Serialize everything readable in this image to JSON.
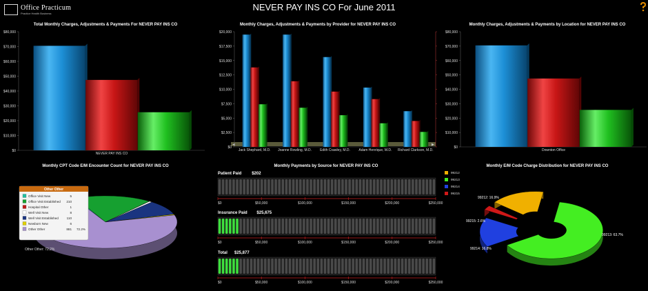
{
  "app": {
    "logo_text": "Office Practicum",
    "logo_tagline": "Practice Health Business"
  },
  "page": {
    "title": "NEVER PAY INS CO For June 2011"
  },
  "colors": {
    "charges": "#1e90d8",
    "adjustments": "#d81818",
    "payments": "#22c222",
    "bg": "#000000"
  },
  "chart_data": [
    {
      "id": "total",
      "type": "bar",
      "title": "Total Monthly Charges, Adjustments & Payments For NEVER PAY INS CO",
      "categories": [
        "NEVER PAY INS CO"
      ],
      "series": [
        {
          "values": [
            70500
          ]
        },
        {
          "values": [
            47500
          ]
        },
        {
          "values": [
            25700
          ]
        }
      ],
      "ylim": [
        0,
        80000
      ],
      "yticks": [
        0,
        10000,
        20000,
        30000,
        40000,
        50000,
        60000,
        70000,
        80000
      ],
      "ytick_labels": [
        "$0",
        "$10,000",
        "$20,000",
        "$30,000",
        "$40,000",
        "$50,000",
        "$60,000",
        "$70,000",
        "$80,000"
      ]
    },
    {
      "id": "provider",
      "type": "bar",
      "title": "Monthly Charges, Adjustments & Payments by Provider for NEVER PAY INS CO",
      "categories": [
        "Jack Shephard, M.D.",
        "Joanne Rowling, M.D.",
        "Edith Crawley, M.D.",
        "Adam Henrique, M.D.",
        "Richard Clarkson, M.D."
      ],
      "series": [
        {
          "values": [
            19500,
            19500,
            15600,
            10300,
            6200
          ]
        },
        {
          "values": [
            13800,
            11400,
            9600,
            8300,
            4500
          ]
        },
        {
          "values": [
            7400,
            6800,
            5500,
            4100,
            2600
          ]
        }
      ],
      "ylim": [
        0,
        20000
      ],
      "yticks": [
        0,
        2500,
        5000,
        7500,
        10000,
        12500,
        15000,
        17500,
        20000
      ],
      "ytick_labels": [
        "$0",
        "$2,500",
        "$5,000",
        "$7,500",
        "$10,000",
        "$12,500",
        "$15,000",
        "$17,500",
        "$20,000"
      ]
    },
    {
      "id": "location",
      "type": "bar",
      "title": "Monthly Charges, Adjustments & Payments by Location for NEVER PAY INS CO",
      "categories": [
        "Downton Office"
      ],
      "series": [
        {
          "values": [
            70500
          ]
        },
        {
          "values": [
            47500
          ]
        },
        {
          "values": [
            25700
          ]
        }
      ],
      "ylim": [
        0,
        80000
      ],
      "yticks": [
        0,
        10000,
        20000,
        30000,
        40000,
        50000,
        60000,
        70000,
        80000
      ],
      "ytick_labels": [
        "$0",
        "$10,000",
        "$20,000",
        "$30,000",
        "$40,000",
        "$50,000",
        "$60,000",
        "$70,000",
        "$80,000"
      ]
    },
    {
      "id": "cpt_pie",
      "type": "pie",
      "title": "Monthly CPT Code E/M Encounter Count for NEVER PAY INS CO",
      "slices": [
        {
          "name": "Office Visit New",
          "value": 5,
          "color": "#20c0a0"
        },
        {
          "name": "Office Visit Established",
          "value": 210,
          "color": "#16a030"
        },
        {
          "name": "Hospital Other",
          "value": 1,
          "color": "#c01818"
        },
        {
          "name": "Well Visit New",
          "value": 8,
          "color": "#ffffff"
        },
        {
          "name": "Well Visit Established",
          "value": 110,
          "color": "#1a3480"
        },
        {
          "name": "Newborn New",
          "value": 6,
          "color": "#e0d000"
        },
        {
          "name": "Other Other",
          "value": 881,
          "color": "#a890d0",
          "pct_label": "72.2%"
        }
      ],
      "outer_label": "Other Other: 72.2%",
      "tooltip_title": "Other Other"
    },
    {
      "id": "payments_source",
      "type": "bar",
      "title": "Monthly Payments by Source for NEVER PAY INS CO",
      "categories": [
        "Patient Paid",
        "Insurance Paid",
        "Total"
      ],
      "value_labels": [
        "$202",
        "$25,675",
        "$25,877"
      ],
      "values": [
        202,
        25675,
        25877
      ],
      "xlim": [
        0,
        250000
      ],
      "xticks": [
        0,
        50000,
        100000,
        150000,
        200000,
        250000
      ],
      "xtick_labels": [
        "$0",
        "$50,000",
        "$100,000",
        "$150,000",
        "$200,000",
        "$250,000"
      ]
    },
    {
      "id": "em_donut",
      "type": "pie",
      "title": "Monthly E/M Code Charge Distribution for NEVER PAY INS CO",
      "slices": [
        {
          "name": "99212",
          "value": 16.9,
          "label": "99212: 16.9%",
          "color": "#f0b000"
        },
        {
          "name": "99213",
          "value": 63.7,
          "label": "99213: 63.7%",
          "color": "#44ee22"
        },
        {
          "name": "99214",
          "value": 16.8,
          "label": "99214: 16.8%",
          "color": "#2040e0"
        },
        {
          "name": "99215",
          "value": 2.6,
          "label": "99215: 2.6%",
          "color": "#d01818"
        }
      ]
    }
  ]
}
